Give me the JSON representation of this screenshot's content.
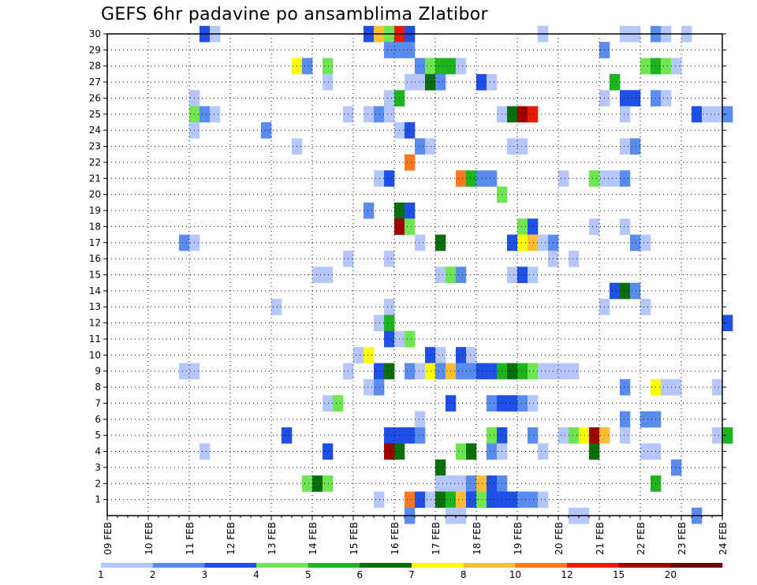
{
  "chart_data": {
    "type": "heatmap",
    "title": "GEFS 6hr padavine po ansamblima Zlatibor",
    "x_tick_labels": [
      "09 FEB",
      "10 FEB",
      "11 FEB",
      "12 FEB",
      "13 FEB",
      "14 FEB",
      "15 FEB",
      "16 FEB",
      "17 FEB",
      "18 FEB",
      "19 FEB",
      "20 FEB",
      "21 FEB",
      "22 FEB",
      "23 FEB",
      "24 FEB"
    ],
    "y_tick_labels": [
      "1",
      "2",
      "3",
      "4",
      "5",
      "6",
      "7",
      "8",
      "9",
      "10",
      "11",
      "12",
      "13",
      "14",
      "15",
      "16",
      "17",
      "18",
      "19",
      "20",
      "21",
      "22",
      "23",
      "24",
      "25",
      "26",
      "27",
      "28",
      "29",
      "30"
    ],
    "time_step": "6hr",
    "grid": true,
    "legend": {
      "position": "bottom",
      "labels": [
        "1",
        "2",
        "3",
        "4",
        "5",
        "6",
        "7",
        "8",
        "10",
        "12",
        "15",
        "20"
      ],
      "colors": [
        "#b4c8ff",
        "#5a8cf0",
        "#1e50e6",
        "#6ee650",
        "#1eb41e",
        "#0a6e0a",
        "#ffff00",
        "#ffbe32",
        "#ff781e",
        "#e61e00",
        "#a00000",
        "#6e0000"
      ]
    },
    "cells": [
      [
        30,
        2.25,
        "#1e50e6"
      ],
      [
        30,
        2.5,
        "#b4c8ff"
      ],
      [
        30,
        6.25,
        "#1e50e6"
      ],
      [
        30,
        6.5,
        "#ffbe32"
      ],
      [
        30,
        6.75,
        "#6ee650"
      ],
      [
        30,
        7,
        "#e61e00"
      ],
      [
        30,
        7.25,
        "#1e50e6"
      ],
      [
        30,
        10.5,
        "#b4c8ff"
      ],
      [
        30,
        12.5,
        "#b4c8ff"
      ],
      [
        30,
        12.75,
        "#b4c8ff"
      ],
      [
        30,
        13.25,
        "#5a8cf0"
      ],
      [
        30,
        13.5,
        "#b4c8ff"
      ],
      [
        30,
        14,
        "#b4c8ff"
      ],
      [
        29,
        6.75,
        "#5a8cf0"
      ],
      [
        29,
        7,
        "#5a8cf0"
      ],
      [
        29,
        7.25,
        "#5a8cf0"
      ],
      [
        29,
        12,
        "#5a8cf0"
      ],
      [
        28,
        4.5,
        "#ffff00"
      ],
      [
        28,
        4.75,
        "#5a8cf0"
      ],
      [
        28,
        5.25,
        "#6ee650"
      ],
      [
        28,
        7.5,
        "#5a8cf0"
      ],
      [
        28,
        7.75,
        "#6ee650"
      ],
      [
        28,
        8,
        "#1eb41e"
      ],
      [
        28,
        8.25,
        "#1eb41e"
      ],
      [
        28,
        8.5,
        "#b4c8ff"
      ],
      [
        28,
        13,
        "#6ee650"
      ],
      [
        28,
        13.25,
        "#1eb41e"
      ],
      [
        28,
        13.5,
        "#6ee650"
      ],
      [
        28,
        13.75,
        "#b4c8ff"
      ],
      [
        27,
        5.25,
        "#b4c8ff"
      ],
      [
        27,
        7.25,
        "#b4c8ff"
      ],
      [
        27,
        7.5,
        "#b4c8ff"
      ],
      [
        27,
        7.75,
        "#0a6e0a"
      ],
      [
        27,
        8,
        "#5a8cf0"
      ],
      [
        27,
        9,
        "#1e50e6"
      ],
      [
        27,
        9.25,
        "#b4c8ff"
      ],
      [
        27,
        12.25,
        "#1eb41e"
      ],
      [
        26,
        2,
        "#b4c8ff"
      ],
      [
        26,
        6.75,
        "#b4c8ff"
      ],
      [
        26,
        7,
        "#1eb41e"
      ],
      [
        26,
        12,
        "#b4c8ff"
      ],
      [
        26,
        12.5,
        "#1e50e6"
      ],
      [
        26,
        12.75,
        "#1e50e6"
      ],
      [
        26,
        13.25,
        "#5a8cf0"
      ],
      [
        26,
        13.5,
        "#b4c8ff"
      ],
      [
        25,
        2,
        "#6ee650"
      ],
      [
        25,
        2.25,
        "#5a8cf0"
      ],
      [
        25,
        2.5,
        "#b4c8ff"
      ],
      [
        25,
        5.75,
        "#b4c8ff"
      ],
      [
        25,
        6.25,
        "#b4c8ff"
      ],
      [
        25,
        6.5,
        "#5a8cf0"
      ],
      [
        25,
        6.75,
        "#b4c8ff"
      ],
      [
        25,
        9.5,
        "#b4c8ff"
      ],
      [
        25,
        9.75,
        "#0a6e0a"
      ],
      [
        25,
        10,
        "#a00000"
      ],
      [
        25,
        10.25,
        "#e61e00"
      ],
      [
        25,
        12.5,
        "#b4c8ff"
      ],
      [
        25,
        14.25,
        "#1e50e6"
      ],
      [
        25,
        14.5,
        "#b4c8ff"
      ],
      [
        25,
        14.75,
        "#b4c8ff"
      ],
      [
        25,
        15,
        "#5a8cf0"
      ],
      [
        24,
        2,
        "#b4c8ff"
      ],
      [
        24,
        3.75,
        "#5a8cf0"
      ],
      [
        24,
        7,
        "#b4c8ff"
      ],
      [
        24,
        7.25,
        "#1e50e6"
      ],
      [
        23,
        4.5,
        "#b4c8ff"
      ],
      [
        23,
        7.5,
        "#5a8cf0"
      ],
      [
        23,
        7.75,
        "#b4c8ff"
      ],
      [
        23,
        9.75,
        "#b4c8ff"
      ],
      [
        23,
        10,
        "#b4c8ff"
      ],
      [
        23,
        12.5,
        "#b4c8ff"
      ],
      [
        23,
        12.75,
        "#5a8cf0"
      ],
      [
        22,
        7.25,
        "#ff781e"
      ],
      [
        21,
        6.5,
        "#b4c8ff"
      ],
      [
        21,
        6.75,
        "#1e50e6"
      ],
      [
        21,
        8.5,
        "#ff781e"
      ],
      [
        21,
        8.75,
        "#1eb41e"
      ],
      [
        21,
        9,
        "#5a8cf0"
      ],
      [
        21,
        9.25,
        "#5a8cf0"
      ],
      [
        21,
        11,
        "#b4c8ff"
      ],
      [
        21,
        11.75,
        "#6ee650"
      ],
      [
        21,
        12,
        "#b4c8ff"
      ],
      [
        21,
        12.25,
        "#b4c8ff"
      ],
      [
        21,
        12.5,
        "#5a8cf0"
      ],
      [
        20,
        9.5,
        "#6ee650"
      ],
      [
        19,
        6.25,
        "#5a8cf0"
      ],
      [
        19,
        7,
        "#0a6e0a"
      ],
      [
        19,
        7.25,
        "#1e50e6"
      ],
      [
        18,
        7,
        "#a00000"
      ],
      [
        18,
        7.25,
        "#6ee650"
      ],
      [
        18,
        10,
        "#6ee650"
      ],
      [
        18,
        10.25,
        "#1e50e6"
      ],
      [
        18,
        11.75,
        "#b4c8ff"
      ],
      [
        18,
        12.5,
        "#b4c8ff"
      ],
      [
        17,
        1.75,
        "#5a8cf0"
      ],
      [
        17,
        2,
        "#b4c8ff"
      ],
      [
        17,
        7.5,
        "#b4c8ff"
      ],
      [
        17,
        8,
        "#0a6e0a"
      ],
      [
        17,
        9.75,
        "#1e50e6"
      ],
      [
        17,
        10,
        "#ffff00"
      ],
      [
        17,
        10.25,
        "#ffbe32"
      ],
      [
        17,
        10.5,
        "#b4c8ff"
      ],
      [
        17,
        10.75,
        "#5a8cf0"
      ],
      [
        17,
        12.75,
        "#5a8cf0"
      ],
      [
        17,
        13,
        "#b4c8ff"
      ],
      [
        16,
        5.75,
        "#b4c8ff"
      ],
      [
        16,
        6.75,
        "#b4c8ff"
      ],
      [
        16,
        10.75,
        "#b4c8ff"
      ],
      [
        16,
        11.25,
        "#b4c8ff"
      ],
      [
        15,
        5,
        "#b4c8ff"
      ],
      [
        15,
        5.25,
        "#b4c8ff"
      ],
      [
        15,
        8,
        "#b4c8ff"
      ],
      [
        15,
        8.25,
        "#6ee650"
      ],
      [
        15,
        8.5,
        "#5a8cf0"
      ],
      [
        15,
        9.75,
        "#b4c8ff"
      ],
      [
        15,
        10,
        "#1e50e6"
      ],
      [
        15,
        10.25,
        "#b4c8ff"
      ],
      [
        14,
        12.25,
        "#1e50e6"
      ],
      [
        14,
        12.5,
        "#0a6e0a"
      ],
      [
        14,
        12.75,
        "#5a8cf0"
      ],
      [
        13,
        4,
        "#b4c8ff"
      ],
      [
        13,
        6.75,
        "#b4c8ff"
      ],
      [
        13,
        12,
        "#b4c8ff"
      ],
      [
        13,
        13,
        "#b4c8ff"
      ],
      [
        12,
        6.5,
        "#b4c8ff"
      ],
      [
        12,
        6.75,
        "#1eb41e"
      ],
      [
        12,
        15,
        "#1e50e6"
      ],
      [
        11,
        6.75,
        "#1e50e6"
      ],
      [
        11,
        7,
        "#b4c8ff"
      ],
      [
        11,
        7.25,
        "#6ee650"
      ],
      [
        10,
        6,
        "#b4c8ff"
      ],
      [
        10,
        6.25,
        "#ffff00"
      ],
      [
        10,
        7.75,
        "#1e50e6"
      ],
      [
        10,
        8,
        "#b4c8ff"
      ],
      [
        10,
        8.5,
        "#1e50e6"
      ],
      [
        10,
        8.75,
        "#b4c8ff"
      ],
      [
        9,
        1.75,
        "#b4c8ff"
      ],
      [
        9,
        2,
        "#b4c8ff"
      ],
      [
        9,
        5.75,
        "#b4c8ff"
      ],
      [
        9,
        6.5,
        "#1e50e6"
      ],
      [
        9,
        6.75,
        "#0a6e0a"
      ],
      [
        9,
        7.25,
        "#5a8cf0"
      ],
      [
        9,
        7.5,
        "#b4c8ff"
      ],
      [
        9,
        7.75,
        "#ffff00"
      ],
      [
        9,
        8,
        "#5a8cf0"
      ],
      [
        9,
        8.25,
        "#ffbe32"
      ],
      [
        9,
        8.5,
        "#5a8cf0"
      ],
      [
        9,
        8.75,
        "#5a8cf0"
      ],
      [
        9,
        9,
        "#1e50e6"
      ],
      [
        9,
        9.25,
        "#1e50e6"
      ],
      [
        9,
        9.5,
        "#1eb41e"
      ],
      [
        9,
        9.75,
        "#0a6e0a"
      ],
      [
        9,
        10,
        "#1eb41e"
      ],
      [
        9,
        10.25,
        "#6ee650"
      ],
      [
        9,
        10.5,
        "#b4c8ff"
      ],
      [
        9,
        10.75,
        "#b4c8ff"
      ],
      [
        9,
        11,
        "#b4c8ff"
      ],
      [
        9,
        11.25,
        "#b4c8ff"
      ],
      [
        8,
        6.25,
        "#b4c8ff"
      ],
      [
        8,
        6.5,
        "#5a8cf0"
      ],
      [
        8,
        12.5,
        "#5a8cf0"
      ],
      [
        8,
        13.25,
        "#ffff00"
      ],
      [
        8,
        13.5,
        "#b4c8ff"
      ],
      [
        8,
        13.75,
        "#b4c8ff"
      ],
      [
        8,
        14.75,
        "#b4c8ff"
      ],
      [
        7,
        5.25,
        "#b4c8ff"
      ],
      [
        7,
        5.5,
        "#6ee650"
      ],
      [
        7,
        8.25,
        "#1e50e6"
      ],
      [
        7,
        9.25,
        "#5a8cf0"
      ],
      [
        7,
        9.5,
        "#1e50e6"
      ],
      [
        7,
        9.75,
        "#1e50e6"
      ],
      [
        7,
        10,
        "#5a8cf0"
      ],
      [
        7,
        10.25,
        "#b4c8ff"
      ],
      [
        6,
        7.5,
        "#b4c8ff"
      ],
      [
        6,
        12.5,
        "#5a8cf0"
      ],
      [
        6,
        13,
        "#5a8cf0"
      ],
      [
        6,
        13.25,
        "#5a8cf0"
      ],
      [
        5,
        4.25,
        "#1e50e6"
      ],
      [
        5,
        6.75,
        "#1e50e6"
      ],
      [
        5,
        7,
        "#1e50e6"
      ],
      [
        5,
        7.25,
        "#1e50e6"
      ],
      [
        5,
        7.5,
        "#5a8cf0"
      ],
      [
        5,
        9.25,
        "#6ee650"
      ],
      [
        5,
        9.5,
        "#1e50e6"
      ],
      [
        5,
        10.25,
        "#5a8cf0"
      ],
      [
        5,
        11,
        "#b4c8ff"
      ],
      [
        5,
        11.25,
        "#6ee650"
      ],
      [
        5,
        11.5,
        "#ffff00"
      ],
      [
        5,
        11.75,
        "#a00000"
      ],
      [
        5,
        12,
        "#ffbe32"
      ],
      [
        5,
        12.5,
        "#b4c8ff"
      ],
      [
        5,
        14.75,
        "#b4c8ff"
      ],
      [
        5,
        15,
        "#1eb41e"
      ],
      [
        4,
        2.25,
        "#b4c8ff"
      ],
      [
        4,
        5.25,
        "#1e50e6"
      ],
      [
        4,
        6.75,
        "#a00000"
      ],
      [
        4,
        7,
        "#0a6e0a"
      ],
      [
        4,
        8.5,
        "#6ee650"
      ],
      [
        4,
        8.75,
        "#0a6e0a"
      ],
      [
        4,
        9.25,
        "#5a8cf0"
      ],
      [
        4,
        9.5,
        "#b4c8ff"
      ],
      [
        4,
        10.5,
        "#b4c8ff"
      ],
      [
        4,
        11.75,
        "#0a6e0a"
      ],
      [
        4,
        13,
        "#b4c8ff"
      ],
      [
        4,
        13.25,
        "#b4c8ff"
      ],
      [
        3,
        8,
        "#0a6e0a"
      ],
      [
        3,
        13.75,
        "#5a8cf0"
      ],
      [
        2,
        4.75,
        "#6ee650"
      ],
      [
        2,
        5,
        "#0a6e0a"
      ],
      [
        2,
        5.25,
        "#6ee650"
      ],
      [
        2,
        8,
        "#b4c8ff"
      ],
      [
        2,
        8.25,
        "#b4c8ff"
      ],
      [
        2,
        8.5,
        "#b4c8ff"
      ],
      [
        2,
        8.75,
        "#5a8cf0"
      ],
      [
        2,
        9,
        "#ffbe32"
      ],
      [
        2,
        9.25,
        "#1e50e6"
      ],
      [
        2,
        9.5,
        "#5a8cf0"
      ],
      [
        2,
        13.25,
        "#1eb41e"
      ],
      [
        1,
        6.5,
        "#b4c8ff"
      ],
      [
        1,
        7.25,
        "#ff781e"
      ],
      [
        1,
        7.5,
        "#1e50e6"
      ],
      [
        1,
        7.75,
        "#b4c8ff"
      ],
      [
        1,
        8,
        "#0a6e0a"
      ],
      [
        1,
        8.25,
        "#1eb41e"
      ],
      [
        1,
        8.5,
        "#ffbe32"
      ],
      [
        1,
        8.75,
        "#1e50e6"
      ],
      [
        1,
        9,
        "#6ee650"
      ],
      [
        1,
        9.25,
        "#1e50e6"
      ],
      [
        1,
        9.5,
        "#1e50e6"
      ],
      [
        1,
        9.75,
        "#1e50e6"
      ],
      [
        1,
        10,
        "#5a8cf0"
      ],
      [
        1,
        10.25,
        "#5a8cf0"
      ],
      [
        1,
        10.5,
        "#b4c8ff"
      ],
      [
        0,
        7.25,
        "#5a8cf0"
      ],
      [
        0,
        8.25,
        "#b4c8ff"
      ],
      [
        0,
        8.5,
        "#b4c8ff"
      ],
      [
        0,
        11.25,
        "#b4c8ff"
      ],
      [
        0,
        11.5,
        "#b4c8ff"
      ],
      [
        0,
        14.25,
        "#5a8cf0"
      ]
    ]
  }
}
